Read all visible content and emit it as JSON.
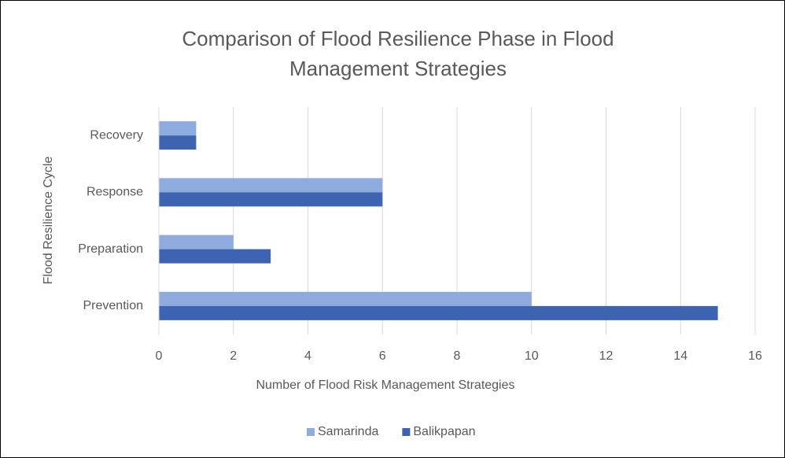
{
  "chart_data": {
    "type": "hbar",
    "title": "Comparison of Flood Resilience Phase in Flood Management Strategies",
    "x_label": "Number of Flood Risk Management Strategies",
    "y_label": "Flood Resilience Cycle",
    "categories": [
      "Prevention",
      "Preparation",
      "Response",
      "Recovery"
    ],
    "series": [
      {
        "name": "Samarinda",
        "color": "#8faadc",
        "values": [
          10,
          2,
          6,
          1
        ]
      },
      {
        "name": "Balikpapan",
        "color": "#3c64b1",
        "values": [
          15,
          3,
          6,
          1
        ]
      }
    ],
    "xlim": [
      0,
      16
    ],
    "xticks": [
      0,
      2,
      4,
      6,
      8,
      10,
      12,
      14,
      16
    ],
    "grid": true,
    "legend": "bottom"
  }
}
